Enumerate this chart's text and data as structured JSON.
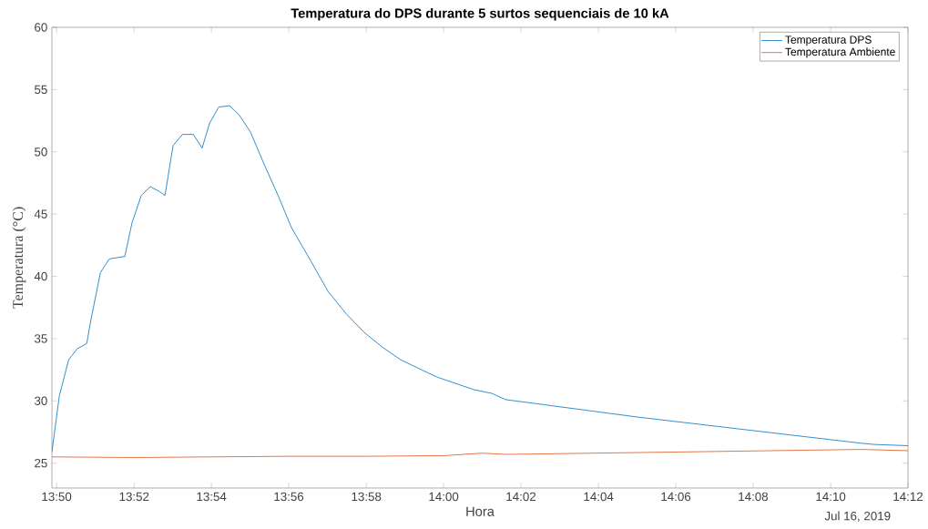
{
  "chart_data": {
    "type": "line",
    "title": "Temperatura do DPS durante 5 surtos sequenciais de 10 kA",
    "xlabel": "Hora",
    "ylabel": "Temperatura (°C)",
    "annotations": [
      "Jul 16, 2019"
    ],
    "xlim": [
      13.8313,
      14.2
    ],
    "ylim": [
      23,
      60
    ],
    "xticks": [
      {
        "value": 13.8333,
        "label": "13:50"
      },
      {
        "value": 13.8667,
        "label": "13:52"
      },
      {
        "value": 13.9,
        "label": "13:54"
      },
      {
        "value": 13.9333,
        "label": "13:56"
      },
      {
        "value": 13.9667,
        "label": "13:58"
      },
      {
        "value": 14.0,
        "label": "14:00"
      },
      {
        "value": 14.0333,
        "label": "14:02"
      },
      {
        "value": 14.0667,
        "label": "14:04"
      },
      {
        "value": 14.1,
        "label": "14:06"
      },
      {
        "value": 14.1333,
        "label": "14:08"
      },
      {
        "value": 14.1667,
        "label": "14:10"
      },
      {
        "value": 14.2,
        "label": "14:12"
      }
    ],
    "yticks": [
      25,
      30,
      35,
      40,
      45,
      50,
      55,
      60
    ],
    "grid": false,
    "legend": "top right",
    "series": [
      {
        "name": "Temperatura DPS",
        "color": "#0072bd",
        "x": [
          13.8313,
          13.8345,
          13.8385,
          13.8423,
          13.8463,
          13.8482,
          13.8522,
          13.856,
          13.8627,
          13.8658,
          13.8698,
          13.8737,
          13.8777,
          13.88,
          13.8835,
          13.8875,
          13.8922,
          13.896,
          13.8992,
          13.9032,
          13.9078,
          13.9118,
          13.9168,
          13.9227,
          13.9287,
          13.9345,
          13.9423,
          13.9502,
          13.958,
          13.9658,
          13.9737,
          13.9815,
          13.9893,
          13.9973,
          14.0052,
          14.013,
          14.0208,
          14.0267,
          14.0835,
          14.1797,
          14.1855,
          14.2
        ],
        "values": [
          25.9,
          30.4,
          33.3,
          34.2,
          34.6,
          36.6,
          40.3,
          41.4,
          41.6,
          44.3,
          46.5,
          47.2,
          46.8,
          46.5,
          50.5,
          51.4,
          51.4,
          50.3,
          52.3,
          53.6,
          53.7,
          53.0,
          51.6,
          49.0,
          46.5,
          43.9,
          41.4,
          38.8,
          37.0,
          35.5,
          34.3,
          33.3,
          32.6,
          31.9,
          31.4,
          30.9,
          30.6,
          30.1,
          28.7,
          26.6,
          26.5,
          26.4
        ]
      },
      {
        "name": "Temperatura Ambiente",
        "color": "#d95319",
        "x": [
          13.8313,
          13.8667,
          13.9,
          13.9333,
          13.9667,
          14.0,
          14.0167,
          14.0267,
          14.1797,
          14.2
        ],
        "values": [
          25.5,
          25.45,
          25.5,
          25.55,
          25.55,
          25.6,
          25.8,
          25.7,
          26.1,
          26.0
        ]
      }
    ]
  }
}
